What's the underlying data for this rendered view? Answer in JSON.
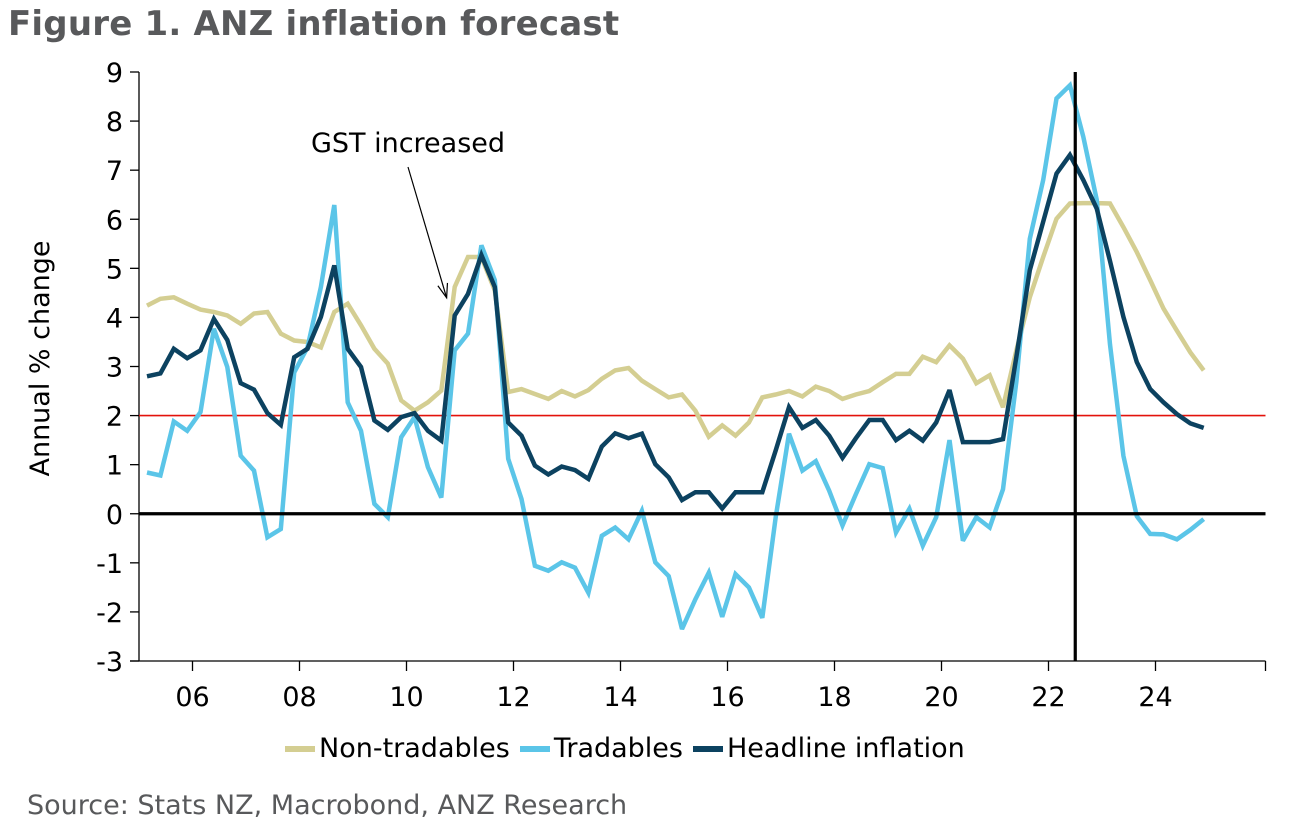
{
  "figure": {
    "title": "Figure 1.  ANZ inflation forecast",
    "source": "Source: Stats NZ, Macrobond, ANZ Research"
  },
  "chart_data": {
    "type": "line",
    "title": "Figure 1.  ANZ inflation forecast",
    "xlabel": "",
    "ylabel": "Annual % change",
    "ylim": [
      -3,
      9
    ],
    "xlim": [
      2005,
      2026
    ],
    "yticks": [
      -3,
      -2,
      -1,
      0,
      1,
      2,
      3,
      4,
      5,
      6,
      7,
      8,
      9
    ],
    "ytick_labels": [
      "-3",
      "-2",
      "-1",
      "0",
      "1",
      "2",
      "3",
      "4",
      "5",
      "6",
      "7",
      "8",
      "9"
    ],
    "xticks": [
      2006,
      2008,
      2010,
      2012,
      2014,
      2016,
      2018,
      2020,
      2022,
      2024
    ],
    "xtick_labels": [
      "06",
      "08",
      "10",
      "12",
      "14",
      "16",
      "18",
      "20",
      "22",
      "24"
    ],
    "grid": false,
    "frequency": "quarterly",
    "x_start": 2005.15,
    "x_step": 0.25,
    "reference_lines": [
      {
        "axis": "y",
        "value": 2,
        "color": "#e3120b",
        "label": "target midpoint"
      },
      {
        "axis": "y",
        "value": 0,
        "color": "#000000",
        "label": "zero"
      },
      {
        "axis": "x",
        "value": 2022.5,
        "color": "#000000",
        "label": "forecast start"
      }
    ],
    "annotations": [
      {
        "text": "GST increased",
        "arrow_to": {
          "x": 2010.75,
          "y": 4.4
        }
      }
    ],
    "legend_position": "bottom",
    "series": [
      {
        "name": "Non-tradables",
        "color": "#d4ce92",
        "values": [
          4.24,
          4.38,
          4.41,
          4.28,
          4.16,
          4.11,
          4.04,
          3.87,
          4.08,
          4.11,
          3.67,
          3.53,
          3.5,
          3.39,
          4.11,
          4.28,
          3.84,
          3.36,
          3.06,
          2.31,
          2.1,
          2.27,
          2.51,
          4.62,
          5.23,
          5.23,
          4.55,
          2.48,
          2.54,
          2.44,
          2.34,
          2.5,
          2.39,
          2.52,
          2.75,
          2.92,
          2.97,
          2.71,
          2.54,
          2.37,
          2.43,
          2.1,
          1.57,
          1.8,
          1.59,
          1.86,
          2.37,
          2.43,
          2.5,
          2.39,
          2.59,
          2.5,
          2.34,
          2.43,
          2.5,
          2.68,
          2.85,
          2.85,
          3.2,
          3.09,
          3.43,
          3.16,
          2.66,
          2.82,
          2.17,
          3.33,
          4.41,
          5.23,
          6.01,
          6.32,
          6.33,
          6.33,
          6.32,
          5.84,
          5.33,
          4.76,
          4.18,
          3.73,
          3.29,
          2.92
        ]
      },
      {
        "name": "Tradables",
        "color": "#5bc5e8",
        "values": [
          0.84,
          0.78,
          1.88,
          1.69,
          2.07,
          3.77,
          2.99,
          1.18,
          0.88,
          -0.48,
          -0.31,
          2.88,
          3.39,
          4.62,
          6.29,
          2.27,
          1.69,
          0.2,
          -0.07,
          1.56,
          1.97,
          0.95,
          0.33,
          3.33,
          3.67,
          5.47,
          4.76,
          1.12,
          0.3,
          -1.06,
          -1.16,
          -0.99,
          -1.1,
          -1.61,
          -0.45,
          -0.28,
          -0.52,
          0.06,
          -0.99,
          -1.27,
          -2.35,
          -1.74,
          -1.2,
          -2.1,
          -1.23,
          -1.5,
          -2.12,
          -0.07,
          1.63,
          0.88,
          1.07,
          0.47,
          -0.24,
          0.4,
          1.01,
          0.93,
          -0.38,
          0.1,
          -0.65,
          -0.07,
          1.5,
          -0.55,
          -0.07,
          -0.28,
          0.5,
          2.7,
          5.6,
          6.8,
          8.46,
          8.73,
          7.68,
          6.4,
          3.45,
          1.18,
          -0.05,
          -0.41,
          -0.42,
          -0.52,
          -0.33,
          -0.11
        ]
      },
      {
        "name": "Headline inflation",
        "color": "#0c4260",
        "values": [
          2.8,
          2.86,
          3.36,
          3.17,
          3.33,
          3.97,
          3.54,
          2.66,
          2.53,
          2.05,
          1.81,
          3.19,
          3.36,
          4.01,
          5.06,
          3.36,
          2.99,
          1.9,
          1.71,
          1.97,
          2.05,
          1.69,
          1.49,
          4.04,
          4.48,
          5.27,
          4.62,
          1.86,
          1.59,
          0.98,
          0.8,
          0.96,
          0.89,
          0.71,
          1.37,
          1.64,
          1.54,
          1.63,
          1.01,
          0.74,
          0.28,
          0.44,
          0.44,
          0.11,
          0.44,
          0.44,
          0.44,
          1.29,
          2.17,
          1.75,
          1.91,
          1.59,
          1.14,
          1.54,
          1.91,
          1.91,
          1.5,
          1.69,
          1.49,
          1.86,
          2.52,
          1.46,
          1.46,
          1.46,
          1.52,
          3.2,
          4.96,
          5.95,
          6.93,
          7.31,
          6.8,
          6.22,
          5.15,
          4.01,
          3.09,
          2.54,
          2.27,
          2.03,
          1.84,
          1.75
        ]
      }
    ]
  }
}
